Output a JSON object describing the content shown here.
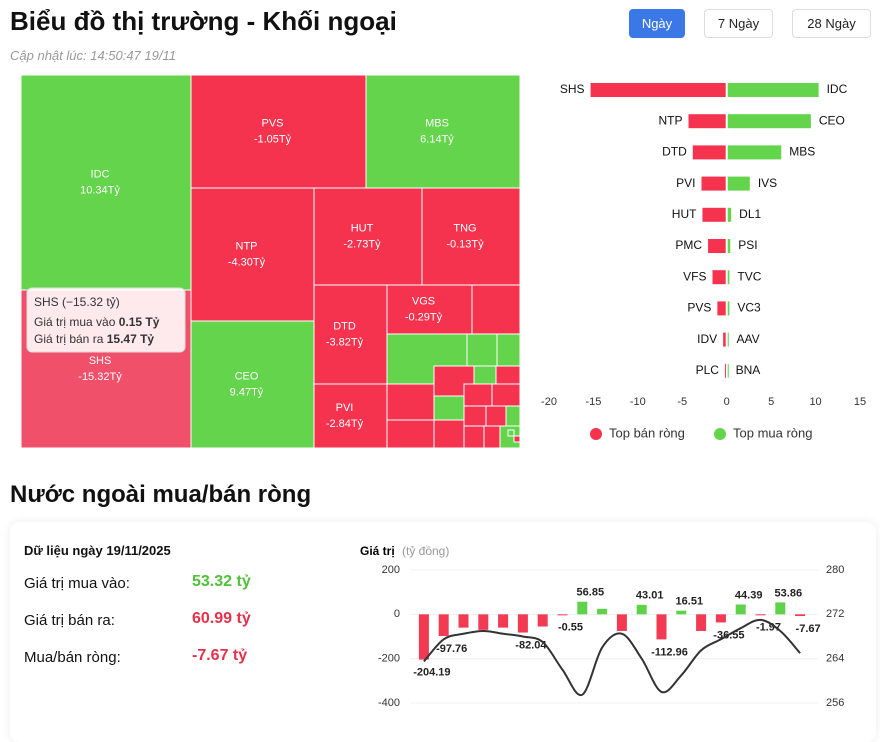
{
  "header": {
    "title": "Biểu đồ thị trường - Khối ngoại",
    "updated": "Cập nhật lúc: 14:50:47 19/11",
    "tabs": [
      "Ngày",
      "7 Ngày",
      "28 Ngày"
    ]
  },
  "treemap": {
    "items": [
      {
        "label": "IDC",
        "value": 10.34,
        "value_label": "10.34Tỷ",
        "color": "#63d44b"
      },
      {
        "label": "SHS",
        "value": -15.32,
        "value_label": "-15.32Tỷ",
        "color": "#f0506a"
      },
      {
        "label": "PVS",
        "value": -1.05,
        "value_label": "-1.05Tỷ",
        "color": "#f5334f"
      },
      {
        "label": "MBS",
        "value": 6.14,
        "value_label": "6.14Tỷ",
        "color": "#63d44b"
      },
      {
        "label": "NTP",
        "value": -4.3,
        "value_label": "-4.30Tỷ",
        "color": "#f5334f"
      },
      {
        "label": "CEO",
        "value": 9.47,
        "value_label": "9.47Tỷ",
        "color": "#63d44b"
      },
      {
        "label": "HUT",
        "value": -2.73,
        "value_label": "-2.73Tỷ",
        "color": "#f5334f"
      },
      {
        "label": "TNG",
        "value": -0.13,
        "value_label": "-0.13Tỷ",
        "color": "#f5334f"
      },
      {
        "label": "DTD",
        "value": -3.82,
        "value_label": "-3.82Tỷ",
        "color": "#f5334f"
      },
      {
        "label": "VGS",
        "value": -0.29,
        "value_label": "-0.29Tỷ",
        "color": "#f5334f"
      },
      {
        "label": "PVI",
        "value": -2.84,
        "value_label": "-2.84Tỷ",
        "color": "#f5334f"
      }
    ],
    "tooltip": {
      "title": "SHS (−15.32 tỷ)",
      "rows": [
        {
          "label": "Giá trị mua vào",
          "value": "0.15 Tỷ"
        },
        {
          "label": "Giá trị bán ra",
          "value": "15.47 Tỷ"
        }
      ]
    }
  },
  "summary": {
    "title": "Nước ngoài mua/bán ròng",
    "date": "Dữ liệu ngày 19/11/2025",
    "rows": [
      {
        "label": "Giá trị mua vào:",
        "value": "53.32 tỷ",
        "color": "#4fc13a"
      },
      {
        "label": "Giá trị bán ra:",
        "value": "60.99 tỷ",
        "color": "#e8304a"
      },
      {
        "label": "Mua/bán ròng:",
        "value": "-7.67 tỷ",
        "color": "#e8304a"
      }
    ]
  },
  "chart_data": [
    {
      "type": "diverging-bar",
      "xlim": [
        -20,
        15
      ],
      "xticks": [
        -20,
        -15,
        -10,
        -5,
        0,
        5,
        10,
        15
      ],
      "legend": "bottom",
      "series": [
        {
          "name": "Top bán ròng",
          "color": "#f5334f",
          "categories": [
            "SHS",
            "NTP",
            "DTD",
            "PVI",
            "HUT",
            "PMC",
            "VFS",
            "PVS",
            "IDV",
            "PLC"
          ],
          "values": [
            -15.32,
            -4.3,
            -3.82,
            -2.84,
            -2.73,
            -2.1,
            -1.6,
            -1.05,
            -0.4,
            -0.2
          ]
        },
        {
          "name": "Top mua ròng",
          "color": "#63d44b",
          "categories": [
            "IDC",
            "CEO",
            "MBS",
            "IVS",
            "DL1",
            "PSI",
            "TVC",
            "VC3",
            "AAV",
            "BNA"
          ],
          "values": [
            10.34,
            9.47,
            6.14,
            2.6,
            0.5,
            0.4,
            0.3,
            0.3,
            0.2,
            0.1
          ]
        }
      ]
    },
    {
      "type": "bar-line",
      "ylabel": "Giá trị",
      "yunit": "(tỷ đồng)",
      "ylim": [
        -400,
        200
      ],
      "yticks": [
        200,
        0,
        -200,
        -400
      ],
      "y2lim": [
        256,
        280
      ],
      "y2ticks": [
        280,
        272,
        264,
        256
      ],
      "grid": true,
      "series": [
        {
          "type": "bar",
          "positive_color": "#5fd14a",
          "negative_color": "#f23a52",
          "values": [
            -204.19,
            -97.76,
            -60,
            -70,
            -60,
            -82.04,
            -55,
            -0.55,
            56.85,
            25,
            -75,
            43.01,
            -112.96,
            16.51,
            -75,
            -36.55,
            44.39,
            -1.97,
            53.86,
            -7.67
          ],
          "value_labels": [
            "-204.19",
            "-97.76",
            null,
            null,
            null,
            "-82.04",
            null,
            "-0.55",
            "56.85",
            null,
            null,
            "43.01",
            "-112.96",
            "16.51",
            null,
            "-36.55",
            "44.39",
            "-1.97",
            "53.86",
            "-7.67"
          ]
        },
        {
          "type": "line",
          "axis": "y2",
          "color": "#333333",
          "values": [
            263.5,
            267.5,
            268.5,
            269,
            268.5,
            268,
            267,
            262,
            257.5,
            266,
            268.5,
            264,
            258,
            261,
            265.5,
            267.5,
            269.5,
            271,
            269,
            265
          ]
        }
      ]
    }
  ]
}
